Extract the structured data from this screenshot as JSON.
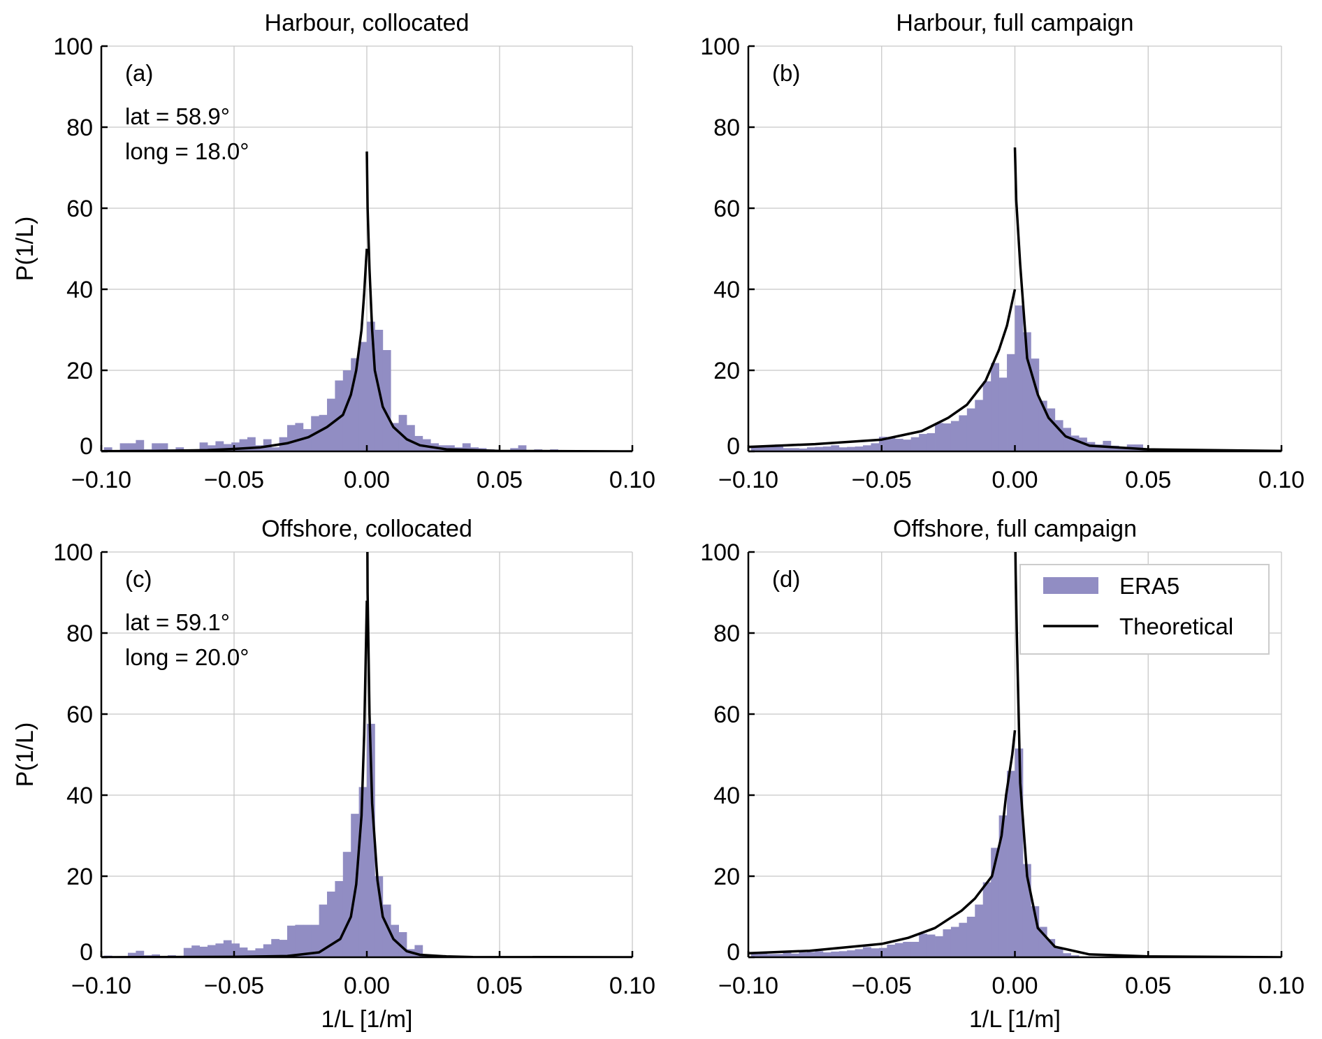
{
  "colors": {
    "hist": "#918dc3",
    "curve": "#000000",
    "grid": "#c8c8c8"
  },
  "legend": {
    "items": [
      "ERA5",
      "Theoretical"
    ],
    "placement": "top-right of panel (d)"
  },
  "chart_data": [
    {
      "type": "bar",
      "panel_label": "(a)",
      "title": "Harbour, collocated",
      "annotations": [
        "lat = 58.9°",
        "long = 18.0°"
      ],
      "xlabel": "",
      "ylabel": "P(1/L)",
      "xlim": [
        -0.1,
        0.1
      ],
      "ylim": [
        0,
        100
      ],
      "xticks": [
        "−0.10",
        "−0.05",
        "0.00",
        "0.05",
        "0.10"
      ],
      "yticks": [
        "0",
        "20",
        "40",
        "60",
        "80",
        "100"
      ],
      "grid": true,
      "hist": {
        "name": "ERA5",
        "bin_start": -0.099,
        "bin_width": 0.003,
        "values": [
          1,
          0,
          2,
          2,
          2.8,
          0.5,
          2,
          2,
          0.5,
          1,
          0,
          0.3,
          2.2,
          1.5,
          2.5,
          1.8,
          2.2,
          3,
          3.5,
          1.5,
          3,
          1,
          3.5,
          6.5,
          7,
          5.5,
          8.7,
          9,
          13,
          17.5,
          20,
          23,
          27,
          32,
          30,
          25,
          7,
          9,
          6.5,
          3.8,
          3,
          2,
          1.5,
          1.5,
          1,
          2,
          1,
          0.8,
          0.5,
          0.3,
          0.2,
          0.8,
          1.5,
          0,
          0.5,
          0,
          0.5,
          0,
          0,
          0,
          0,
          0,
          0,
          0,
          0,
          0
        ]
      },
      "theoretical": {
        "name": "Theoretical",
        "left": {
          "x": [
            -0.1,
            -0.08,
            -0.06,
            -0.05,
            -0.04,
            -0.03,
            -0.022,
            -0.015,
            -0.009,
            -0.006,
            -0.004,
            -0.002,
            -0.001,
            -0.0003,
            0
          ],
          "y": [
            0.05,
            0.1,
            0.3,
            0.6,
            1.0,
            2.0,
            3.5,
            6,
            9,
            14,
            20,
            30,
            39,
            47,
            50
          ]
        },
        "right": {
          "x": [
            0,
            0.0003,
            0.001,
            0.002,
            0.003,
            0.006,
            0.01,
            0.015,
            0.02,
            0.03,
            0.05,
            0.1
          ],
          "y": [
            74,
            60,
            45,
            30,
            20,
            11,
            6,
            3,
            1.5,
            0.5,
            0.1,
            0
          ]
        }
      }
    },
    {
      "type": "bar",
      "panel_label": "(b)",
      "title": "Harbour, full campaign",
      "annotations": [],
      "xlabel": "",
      "ylabel": "",
      "xlim": [
        -0.1,
        0.1
      ],
      "ylim": [
        0,
        100
      ],
      "xticks": [
        "−0.10",
        "−0.05",
        "0.00",
        "0.05",
        "0.10"
      ],
      "yticks": [
        "0",
        "20",
        "40",
        "60",
        "80",
        "100"
      ],
      "grid": true,
      "hist": {
        "name": "ERA5",
        "bin_start": -0.099,
        "bin_width": 0.003,
        "values": [
          1.4,
          1,
          1.2,
          1.7,
          0.8,
          0.8,
          0.7,
          1.0,
          1.1,
          1.2,
          1.5,
          1.0,
          1.1,
          1.2,
          1.5,
          2,
          3.6,
          3.5,
          3.1,
          2.9,
          3.5,
          4.3,
          4.5,
          7,
          6.9,
          7.5,
          8.9,
          10.6,
          12.7,
          17.3,
          21.8,
          18.2,
          24,
          36,
          29.4,
          22.9,
          12.5,
          10.6,
          7.7,
          5.8,
          3.9,
          3.4,
          2.3,
          1.7,
          2.6,
          1.4,
          1.1,
          1.7,
          1.7,
          0.5,
          0.3,
          0.3,
          0.3,
          0,
          0,
          0,
          0,
          0,
          0,
          0,
          0,
          0,
          0,
          0,
          0,
          0
        ]
      },
      "theoretical": {
        "name": "Theoretical",
        "left": {
          "x": [
            -0.1,
            -0.075,
            -0.05,
            -0.035,
            -0.025,
            -0.018,
            -0.011,
            -0.006,
            -0.003,
            -0.001,
            0
          ],
          "y": [
            1.1,
            1.8,
            2.9,
            5,
            8.3,
            11.5,
            17.4,
            25,
            31,
            37,
            40
          ]
        },
        "right": {
          "x": [
            0,
            0.0005,
            0.002,
            0.0046,
            0.0086,
            0.0126,
            0.019,
            0.028,
            0.05,
            0.1
          ],
          "y": [
            75,
            62,
            46,
            23,
            14,
            8.3,
            3.7,
            1.4,
            0.5,
            0.1
          ]
        }
      }
    },
    {
      "type": "bar",
      "panel_label": "(c)",
      "title": "Offshore, collocated",
      "annotations": [
        "lat = 59.1°",
        "long = 20.0°"
      ],
      "xlabel": "1/L [1/m]",
      "ylabel": "P(1/L)",
      "xlim": [
        -0.1,
        0.1
      ],
      "ylim": [
        0,
        100
      ],
      "xticks": [
        "−0.10",
        "−0.05",
        "0.00",
        "0.05",
        "0.10"
      ],
      "yticks": [
        "0",
        "20",
        "40",
        "60",
        "80",
        "100"
      ],
      "grid": true,
      "hist": {
        "name": "ERA5",
        "bin_start": -0.099,
        "bin_width": 0.003,
        "values": [
          0.4,
          0,
          0,
          1.1,
          1.6,
          0.5,
          0.7,
          0,
          0.5,
          0,
          2.3,
          2.9,
          2.6,
          3.0,
          3.4,
          4.2,
          3.4,
          2.4,
          1.7,
          2.2,
          3.2,
          4.5,
          4.3,
          7.8,
          8,
          8,
          8,
          13,
          16.2,
          18.8,
          26,
          35.4,
          42,
          57.6,
          20,
          13,
          8,
          6.2,
          2,
          3,
          0.3,
          0.2,
          0.1,
          0,
          0,
          0,
          0,
          0,
          0,
          0,
          0,
          0,
          0,
          0,
          0,
          0,
          0,
          0,
          0,
          0,
          0,
          0,
          0,
          0,
          0,
          0
        ]
      },
      "theoretical": {
        "name": "Theoretical",
        "left": {
          "x": [
            -0.1,
            -0.05,
            -0.03,
            -0.018,
            -0.01,
            -0.006,
            -0.004,
            -0.002,
            -0.001,
            -0.0003,
            0
          ],
          "y": [
            0,
            0.1,
            0.3,
            1.2,
            4.5,
            10,
            18,
            35,
            55,
            78,
            88
          ]
        },
        "right": {
          "x": [
            0,
            0.0003,
            0.001,
            0.002,
            0.004,
            0.006,
            0.01,
            0.015,
            0.02,
            0.03,
            0.04,
            0.1
          ],
          "y": [
            130,
            90,
            60,
            38,
            19,
            10,
            4.5,
            1.5,
            0.6,
            0.2,
            0.05,
            0
          ]
        }
      }
    },
    {
      "type": "bar",
      "panel_label": "(d)",
      "title": "Offshore, full campaign",
      "annotations": [],
      "xlabel": "1/L [1/m]",
      "ylabel": "",
      "xlim": [
        -0.1,
        0.1
      ],
      "ylim": [
        0,
        100
      ],
      "xticks": [
        "−0.10",
        "−0.05",
        "0.00",
        "0.05",
        "0.10"
      ],
      "yticks": [
        "0",
        "20",
        "40",
        "60",
        "80",
        "100"
      ],
      "grid": true,
      "hist": {
        "name": "ERA5",
        "bin_start": -0.099,
        "bin_width": 0.003,
        "values": [
          0.8,
          0.9,
          0.8,
          0.8,
          1.3,
          0.9,
          1.2,
          1.3,
          1.5,
          1.2,
          1.4,
          1.5,
          1.7,
          2.0,
          2.5,
          2.2,
          2.3,
          3.1,
          3.5,
          3.8,
          3.8,
          5.8,
          5.6,
          5.2,
          6.9,
          7.5,
          8.5,
          10,
          13,
          18.5,
          27,
          35,
          46,
          51.5,
          23,
          12.6,
          7.5,
          4.5,
          2.5,
          1,
          0.5,
          0.2,
          0.2,
          0,
          0,
          0,
          0,
          0,
          0,
          0,
          0,
          0,
          0,
          0,
          0,
          0,
          0,
          0,
          0,
          0,
          0,
          0,
          0,
          0,
          0,
          0
        ]
      },
      "theoretical": {
        "name": "Theoretical",
        "left": {
          "x": [
            -0.1,
            -0.077,
            -0.05,
            -0.04,
            -0.03,
            -0.02,
            -0.015,
            -0.0086,
            -0.005,
            -0.0033,
            -0.001,
            0
          ],
          "y": [
            1,
            1.6,
            3.3,
            4.8,
            7.2,
            11.5,
            14.5,
            20,
            30,
            40,
            50,
            56
          ]
        },
        "right": {
          "x": [
            0,
            0.0003,
            0.0007,
            0.002,
            0.0046,
            0.0086,
            0.015,
            0.028,
            0.05,
            0.1
          ],
          "y": [
            110,
            95,
            80,
            43,
            20,
            7.2,
            2.6,
            0.7,
            0.2,
            0
          ]
        }
      }
    }
  ]
}
